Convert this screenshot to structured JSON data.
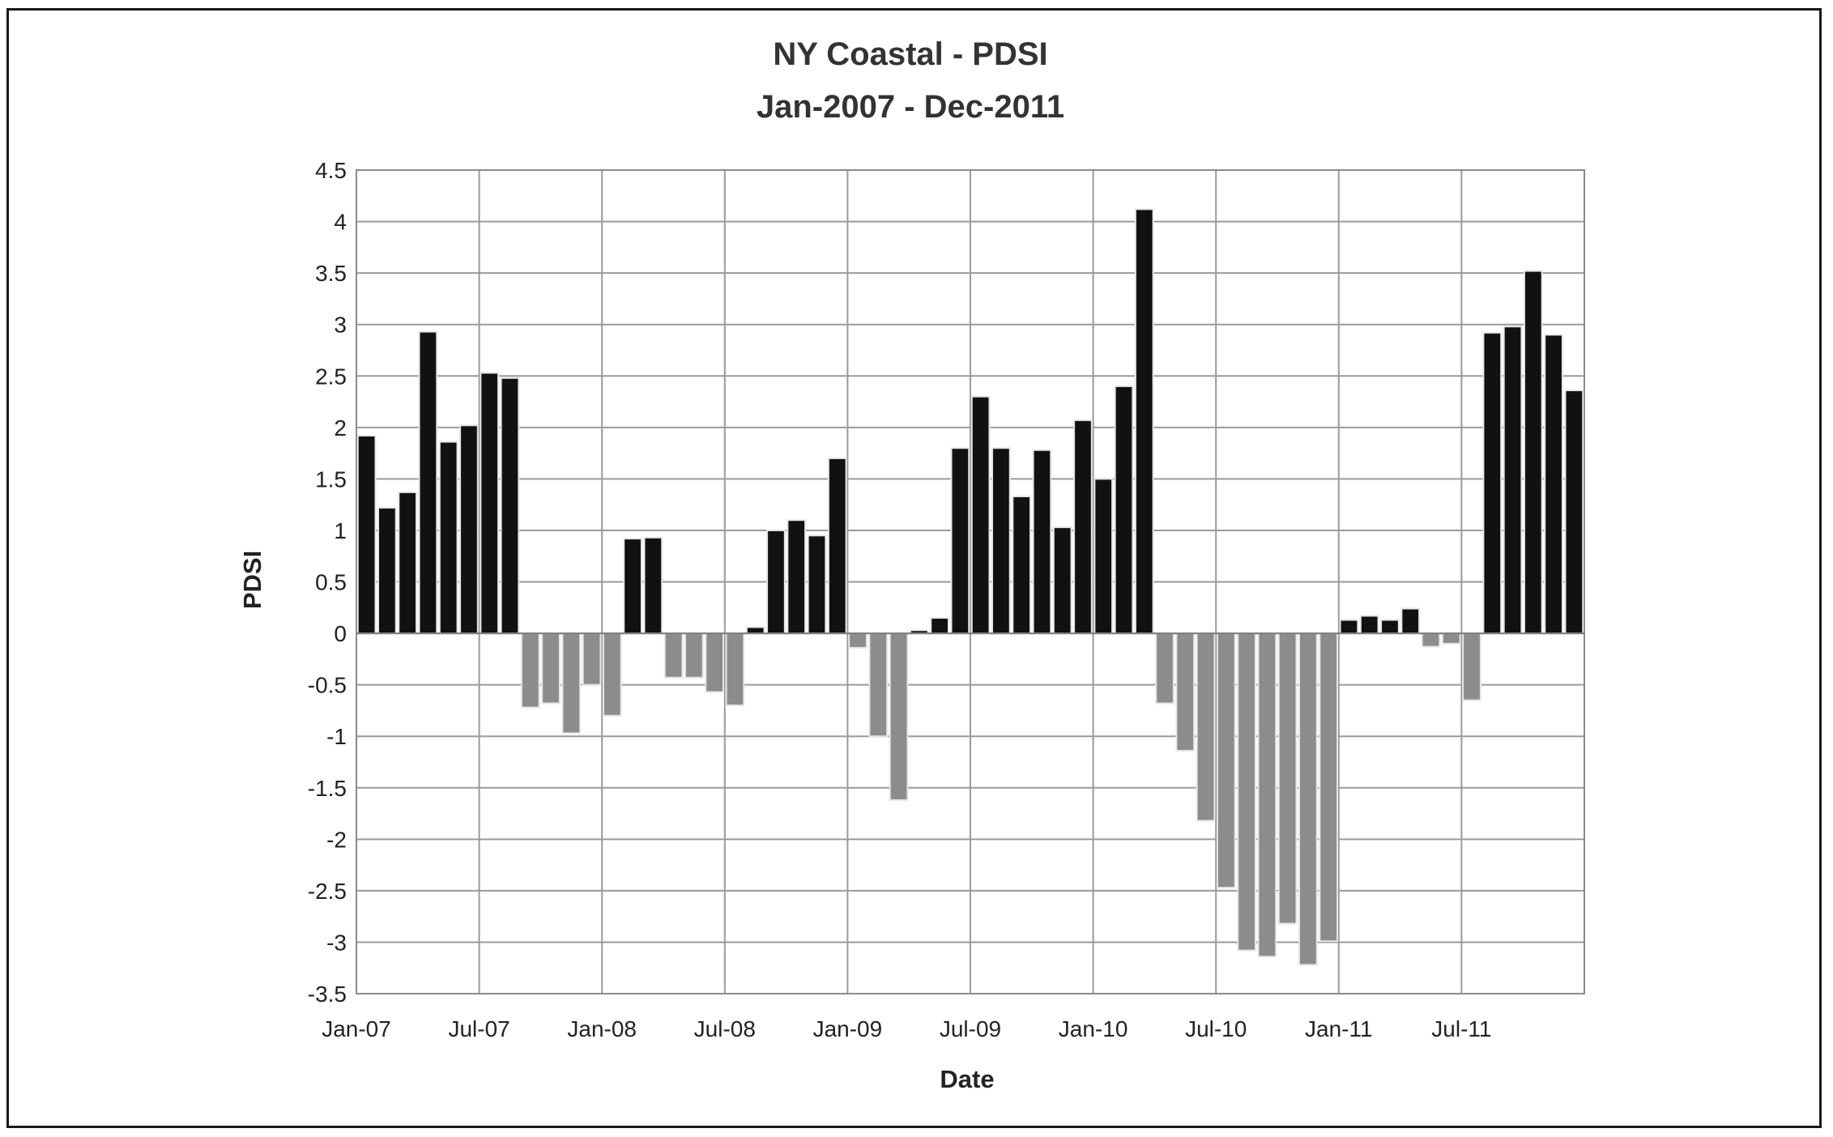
{
  "chart_data": {
    "type": "bar",
    "title": "NY Coastal - PDSI",
    "subtitle": "Jan-2007 - Dec-2011",
    "xlabel": "Date",
    "ylabel": "PDSI",
    "ylim": [
      -3.5,
      4.5
    ],
    "y_ticks": [
      "4.5",
      "4",
      "3.5",
      "3",
      "2.5",
      "2",
      "1.5",
      "1",
      "0.5",
      "0",
      "-0.5",
      "-1",
      "-1.5",
      "-2",
      "-2.5",
      "-3",
      "-3.5"
    ],
    "x_tick_labels": [
      "Jan-07",
      "Jul-07",
      "Jan-08",
      "Jul-08",
      "Jan-09",
      "Jul-09",
      "Jan-10",
      "Jul-10",
      "Jan-11",
      "Jul-11"
    ],
    "grid": true,
    "colors": {
      "positive": "#111111",
      "negative": "#8c8c8c",
      "grid": "#9a9a9a"
    },
    "categories": [
      "Jan-07",
      "Feb-07",
      "Mar-07",
      "Apr-07",
      "May-07",
      "Jun-07",
      "Jul-07",
      "Aug-07",
      "Sep-07",
      "Oct-07",
      "Nov-07",
      "Dec-07",
      "Jan-08",
      "Feb-08",
      "Mar-08",
      "Apr-08",
      "May-08",
      "Jun-08",
      "Jul-08",
      "Aug-08",
      "Sep-08",
      "Oct-08",
      "Nov-08",
      "Dec-08",
      "Jan-09",
      "Feb-09",
      "Mar-09",
      "Apr-09",
      "May-09",
      "Jun-09",
      "Jul-09",
      "Aug-09",
      "Sep-09",
      "Oct-09",
      "Nov-09",
      "Dec-09",
      "Jan-10",
      "Feb-10",
      "Mar-10",
      "Apr-10",
      "May-10",
      "Jun-10",
      "Jul-10",
      "Aug-10",
      "Sep-10",
      "Oct-10",
      "Nov-10",
      "Dec-10",
      "Jan-11",
      "Feb-11",
      "Mar-11",
      "Apr-11",
      "May-11",
      "Jun-11",
      "Jul-11",
      "Aug-11",
      "Sep-11",
      "Oct-11",
      "Nov-11",
      "Dec-11"
    ],
    "values": [
      1.92,
      1.22,
      1.37,
      2.93,
      1.86,
      2.02,
      2.53,
      2.48,
      -0.72,
      -0.68,
      -0.97,
      -0.5,
      -0.8,
      0.92,
      0.93,
      -0.43,
      -0.43,
      -0.57,
      -0.7,
      0.06,
      1.0,
      1.1,
      0.95,
      1.7,
      -0.14,
      -1.0,
      -1.62,
      0.03,
      0.15,
      1.8,
      2.3,
      1.8,
      1.33,
      1.78,
      1.03,
      2.07,
      1.5,
      2.4,
      4.12,
      -0.68,
      -1.14,
      -1.82,
      -2.47,
      -3.08,
      -3.14,
      -2.82,
      -3.22,
      -2.99,
      0.13,
      0.17,
      0.13,
      0.24,
      -0.13,
      -0.1,
      -0.65,
      2.92,
      2.98,
      3.52,
      2.9,
      2.36
    ]
  }
}
